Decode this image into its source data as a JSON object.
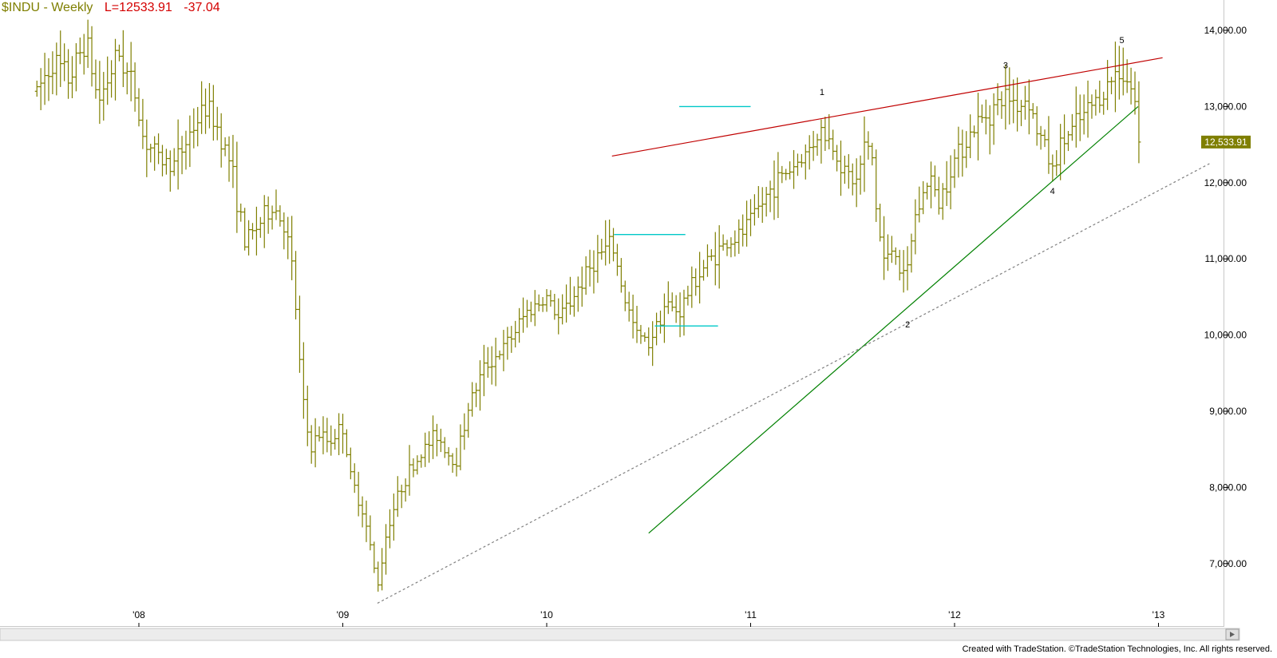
{
  "header": {
    "symbol": "$INDU - Weekly",
    "last": "L=12533.91",
    "change": "-37.04"
  },
  "footer": {
    "credit": "Created with TradeStation. ©TradeStation Technologies, Inc. All rights reserved."
  },
  "chart_data": {
    "type": "bar",
    "bar_style": "OHLC",
    "title": "$INDU - Weekly",
    "xlabel": "",
    "ylabel": "",
    "ylim": [
      6450,
      14200
    ],
    "xlim": [
      2007.5,
      2013.3
    ],
    "y_ticks": [
      "14,000.00",
      "13,000.00",
      "12,000.00",
      "11,000.00",
      "10,000.00",
      "9,000.00",
      "8,000.00",
      "7,000.00"
    ],
    "y_tick_values": [
      14000,
      13000,
      12000,
      11000,
      10000,
      9000,
      8000,
      7000
    ],
    "x_ticks": [
      {
        "label": "'08",
        "x": 2008.0
      },
      {
        "label": "'09",
        "x": 2009.0
      },
      {
        "label": "'10",
        "x": 2010.0
      },
      {
        "label": "'11",
        "x": 2011.0
      },
      {
        "label": "'12",
        "x": 2012.0
      },
      {
        "label": "'13",
        "x": 2013.0
      }
    ],
    "last_price_label": "12,533.91",
    "last_price_value": 12533.91,
    "grid": false,
    "series_color": "#7f7f00",
    "keypoints": [
      [
        2007.5,
        13200
      ],
      [
        2007.58,
        13600
      ],
      [
        2007.66,
        13350
      ],
      [
        2007.74,
        13900
      ],
      [
        2007.8,
        13050
      ],
      [
        2007.9,
        13700
      ],
      [
        2007.98,
        13200
      ],
      [
        2008.02,
        12600
      ],
      [
        2008.1,
        12300
      ],
      [
        2008.18,
        12250
      ],
      [
        2008.26,
        12700
      ],
      [
        2008.33,
        13000
      ],
      [
        2008.39,
        12700
      ],
      [
        2008.45,
        12250
      ],
      [
        2008.52,
        11200
      ],
      [
        2008.6,
        11500
      ],
      [
        2008.66,
        11700
      ],
      [
        2008.72,
        11400
      ],
      [
        2008.76,
        10700
      ],
      [
        2008.8,
        9200
      ],
      [
        2008.84,
        8500
      ],
      [
        2008.88,
        8700
      ],
      [
        2008.93,
        8600
      ],
      [
        2009.0,
        8800
      ],
      [
        2009.04,
        8100
      ],
      [
        2009.1,
        7700
      ],
      [
        2009.17,
        6700
      ],
      [
        2009.22,
        7500
      ],
      [
        2009.3,
        8100
      ],
      [
        2009.4,
        8500
      ],
      [
        2009.46,
        8700
      ],
      [
        2009.55,
        8300
      ],
      [
        2009.62,
        9100
      ],
      [
        2009.7,
        9600
      ],
      [
        2009.8,
        9850
      ],
      [
        2009.9,
        10300
      ],
      [
        2010.0,
        10500
      ],
      [
        2010.06,
        10200
      ],
      [
        2010.15,
        10600
      ],
      [
        2010.24,
        11000
      ],
      [
        2010.32,
        11200
      ],
      [
        2010.38,
        10500
      ],
      [
        2010.44,
        10000
      ],
      [
        2010.5,
        9900
      ],
      [
        2010.58,
        10400
      ],
      [
        2010.65,
        10300
      ],
      [
        2010.72,
        10700
      ],
      [
        2010.8,
        11000
      ],
      [
        2010.88,
        11200
      ],
      [
        2010.95,
        11300
      ],
      [
        2011.05,
        11700
      ],
      [
        2011.12,
        12000
      ],
      [
        2011.2,
        12200
      ],
      [
        2011.28,
        12400
      ],
      [
        2011.34,
        12700
      ],
      [
        2011.4,
        12500
      ],
      [
        2011.47,
        12100
      ],
      [
        2011.52,
        12000
      ],
      [
        2011.56,
        12500
      ],
      [
        2011.6,
        12300
      ],
      [
        2011.62,
        11500
      ],
      [
        2011.66,
        10900
      ],
      [
        2011.7,
        11200
      ],
      [
        2011.74,
        10800
      ],
      [
        2011.76,
        10650
      ],
      [
        2011.8,
        11500
      ],
      [
        2011.84,
        11800
      ],
      [
        2011.88,
        12100
      ],
      [
        2011.92,
        11700
      ],
      [
        2011.98,
        12200
      ],
      [
        2012.04,
        12500
      ],
      [
        2012.12,
        12800
      ],
      [
        2012.2,
        13000
      ],
      [
        2012.26,
        13150
      ],
      [
        2012.32,
        13000
      ],
      [
        2012.36,
        13150
      ],
      [
        2012.4,
        12700
      ],
      [
        2012.44,
        12500
      ],
      [
        2012.48,
        12150
      ],
      [
        2012.52,
        12500
      ],
      [
        2012.58,
        12700
      ],
      [
        2012.64,
        12900
      ],
      [
        2012.7,
        13100
      ],
      [
        2012.76,
        13300
      ],
      [
        2012.8,
        13500
      ],
      [
        2012.84,
        13400
      ],
      [
        2012.87,
        13200
      ],
      [
        2012.9,
        12900
      ],
      [
        2012.91,
        12534
      ]
    ],
    "annotations": [
      {
        "label": "1",
        "x": 2011.35,
        "y": 13150
      },
      {
        "label": "2",
        "x": 2011.77,
        "y": 10100
      },
      {
        "label": "3",
        "x": 2012.25,
        "y": 13500
      },
      {
        "label": "4",
        "x": 2012.48,
        "y": 11850
      },
      {
        "label": "5",
        "x": 2012.82,
        "y": 13830
      }
    ],
    "trendlines": [
      {
        "name": "upper-channel",
        "color": "#c00000",
        "style": "solid",
        "from": [
          2010.32,
          12350
        ],
        "to": [
          2013.02,
          13640
        ]
      },
      {
        "name": "lower-support",
        "color": "#008000",
        "style": "solid",
        "from": [
          2010.5,
          7400
        ],
        "to": [
          2012.9,
          13000
        ]
      },
      {
        "name": "long-term-support",
        "color": "#808080",
        "style": "dashed",
        "from": [
          2009.17,
          6480
        ],
        "to": [
          2013.25,
          12250
        ]
      }
    ],
    "levels": [
      {
        "color": "#00c8c8",
        "y": 13000,
        "x_from": 2010.65,
        "x_to": 2011.0
      },
      {
        "color": "#00c8c8",
        "y": 11320,
        "x_from": 2010.33,
        "x_to": 2010.68
      },
      {
        "color": "#00c8c8",
        "y": 10120,
        "x_from": 2010.53,
        "x_to": 2010.84
      }
    ]
  }
}
